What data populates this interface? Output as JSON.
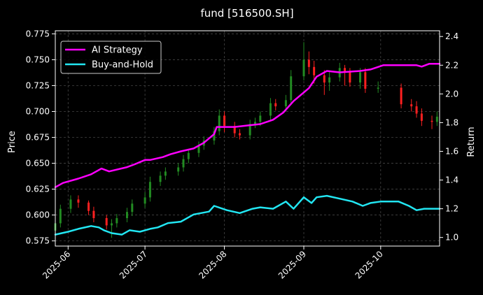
{
  "chart_data": {
    "type": "line",
    "title": "fund [516500.SH]",
    "ylabel": "Price",
    "y2label": "Return",
    "background": "#000000",
    "grid": true,
    "legend_placement": "top-left",
    "ylim": [
      0.57,
      0.778
    ],
    "y2lim": [
      0.94,
      2.44
    ],
    "xlim": [
      "2025-05-27",
      "2025-10-24"
    ],
    "yticks": [
      "0.575",
      "0.600",
      "0.625",
      "0.650",
      "0.675",
      "0.700",
      "0.725",
      "0.750",
      "0.775"
    ],
    "y2ticks": [
      "1.0",
      "1.2",
      "1.4",
      "1.6",
      "1.8",
      "2.0",
      "2.2",
      "2.4"
    ],
    "xticks": [
      "2025-06",
      "2025-07",
      "2025-08",
      "2025-09",
      "2025-10"
    ],
    "series": [
      {
        "name": "AI Strategy",
        "color": "#ff00ff",
        "axis": "right",
        "x": [
          "2025-05-27",
          "2025-05-30",
          "2025-06-05",
          "2025-06-10",
          "2025-06-14",
          "2025-06-17",
          "2025-06-24",
          "2025-06-27",
          "2025-07-01",
          "2025-07-03",
          "2025-07-08",
          "2025-07-11",
          "2025-07-15",
          "2025-07-20",
          "2025-07-24",
          "2025-07-28",
          "2025-07-29",
          "2025-08-05",
          "2025-08-10",
          "2025-08-15",
          "2025-08-20",
          "2025-08-24",
          "2025-08-28",
          "2025-09-03",
          "2025-09-06",
          "2025-09-10",
          "2025-09-15",
          "2025-09-23",
          "2025-09-27",
          "2025-10-02",
          "2025-10-10",
          "2025-10-15",
          "2025-10-17",
          "2025-10-20",
          "2025-10-24"
        ],
        "values": [
          1.35,
          1.38,
          1.41,
          1.44,
          1.48,
          1.46,
          1.49,
          1.51,
          1.54,
          1.54,
          1.56,
          1.58,
          1.6,
          1.62,
          1.66,
          1.72,
          1.77,
          1.77,
          1.78,
          1.79,
          1.82,
          1.87,
          1.95,
          2.04,
          2.12,
          2.16,
          2.15,
          2.16,
          2.17,
          2.2,
          2.2,
          2.2,
          2.19,
          2.21,
          2.21
        ]
      },
      {
        "name": "Buy-and-Hold",
        "color": "#22e6f2",
        "axis": "right",
        "x": [
          "2025-05-27",
          "2025-06-01",
          "2025-06-05",
          "2025-06-10",
          "2025-06-13",
          "2025-06-15",
          "2025-06-18",
          "2025-06-22",
          "2025-06-25",
          "2025-06-29",
          "2025-07-03",
          "2025-07-06",
          "2025-07-10",
          "2025-07-15",
          "2025-07-20",
          "2025-07-26",
          "2025-07-28",
          "2025-08-02",
          "2025-08-07",
          "2025-08-12",
          "2025-08-15",
          "2025-08-20",
          "2025-08-25",
          "2025-08-28",
          "2025-09-01",
          "2025-09-04",
          "2025-09-06",
          "2025-09-10",
          "2025-09-15",
          "2025-09-20",
          "2025-09-24",
          "2025-09-27",
          "2025-10-01",
          "2025-10-05",
          "2025-10-08",
          "2025-10-12",
          "2025-10-15",
          "2025-10-18",
          "2025-10-21",
          "2025-10-24"
        ],
        "values": [
          1.02,
          1.04,
          1.06,
          1.08,
          1.07,
          1.05,
          1.03,
          1.02,
          1.05,
          1.04,
          1.06,
          1.07,
          1.1,
          1.11,
          1.16,
          1.18,
          1.22,
          1.19,
          1.17,
          1.2,
          1.21,
          1.2,
          1.25,
          1.2,
          1.28,
          1.24,
          1.28,
          1.29,
          1.27,
          1.25,
          1.22,
          1.24,
          1.25,
          1.25,
          1.25,
          1.22,
          1.19,
          1.2,
          1.2,
          1.2
        ]
      }
    ],
    "candles": {
      "up_color": "#228b22",
      "down_color": "#ff2020",
      "x": [
        "2025-05-27",
        "2025-05-29",
        "2025-06-02",
        "2025-06-05",
        "2025-06-09",
        "2025-06-11",
        "2025-06-16",
        "2025-06-18",
        "2025-06-20",
        "2025-06-24",
        "2025-06-26",
        "2025-07-01",
        "2025-07-03",
        "2025-07-07",
        "2025-07-09",
        "2025-07-14",
        "2025-07-16",
        "2025-07-18",
        "2025-07-22",
        "2025-07-24",
        "2025-07-28",
        "2025-07-30",
        "2025-08-01",
        "2025-08-05",
        "2025-08-07",
        "2025-08-11",
        "2025-08-13",
        "2025-08-15",
        "2025-08-19",
        "2025-08-21",
        "2025-08-25",
        "2025-08-27",
        "2025-09-01",
        "2025-09-03",
        "2025-09-05",
        "2025-09-09",
        "2025-09-11",
        "2025-09-15",
        "2025-09-17",
        "2025-09-19",
        "2025-09-23",
        "2025-09-25",
        "2025-09-30",
        "2025-10-09",
        "2025-10-13",
        "2025-10-15",
        "2025-10-17",
        "2025-10-21",
        "2025-10-23"
      ],
      "open": [
        0.585,
        0.592,
        0.606,
        0.615,
        0.612,
        0.604,
        0.597,
        0.59,
        0.592,
        0.597,
        0.603,
        0.611,
        0.617,
        0.632,
        0.638,
        0.642,
        0.646,
        0.654,
        0.66,
        0.667,
        0.672,
        0.681,
        0.696,
        0.686,
        0.679,
        0.677,
        0.688,
        0.69,
        0.696,
        0.708,
        0.705,
        0.711,
        0.734,
        0.75,
        0.743,
        0.735,
        0.728,
        0.733,
        0.742,
        0.738,
        0.728,
        0.738,
        0.722,
        0.723,
        0.707,
        0.705,
        0.698,
        0.691,
        0.69
      ],
      "close": [
        0.592,
        0.606,
        0.615,
        0.612,
        0.604,
        0.597,
        0.59,
        0.592,
        0.597,
        0.603,
        0.611,
        0.617,
        0.632,
        0.638,
        0.642,
        0.646,
        0.654,
        0.66,
        0.667,
        0.672,
        0.681,
        0.696,
        0.686,
        0.679,
        0.677,
        0.688,
        0.69,
        0.696,
        0.708,
        0.705,
        0.711,
        0.734,
        0.75,
        0.743,
        0.735,
        0.728,
        0.733,
        0.742,
        0.738,
        0.728,
        0.738,
        0.722,
        0.723,
        0.707,
        0.705,
        0.698,
        0.691,
        0.69,
        0.695
      ],
      "high": [
        0.596,
        0.61,
        0.619,
        0.619,
        0.614,
        0.608,
        0.6,
        0.596,
        0.601,
        0.607,
        0.615,
        0.622,
        0.637,
        0.642,
        0.646,
        0.65,
        0.658,
        0.664,
        0.671,
        0.676,
        0.685,
        0.702,
        0.7,
        0.69,
        0.683,
        0.692,
        0.694,
        0.7,
        0.713,
        0.712,
        0.716,
        0.74,
        0.767,
        0.758,
        0.749,
        0.74,
        0.738,
        0.747,
        0.745,
        0.742,
        0.742,
        0.742,
        0.729,
        0.727,
        0.712,
        0.71,
        0.703,
        0.696,
        0.7
      ],
      "low": [
        0.58,
        0.588,
        0.602,
        0.607,
        0.6,
        0.593,
        0.586,
        0.578,
        0.588,
        0.593,
        0.599,
        0.607,
        0.613,
        0.628,
        0.634,
        0.638,
        0.642,
        0.65,
        0.656,
        0.663,
        0.668,
        0.677,
        0.68,
        0.675,
        0.673,
        0.673,
        0.684,
        0.686,
        0.692,
        0.701,
        0.7,
        0.707,
        0.73,
        0.736,
        0.727,
        0.716,
        0.72,
        0.729,
        0.725,
        0.724,
        0.722,
        0.718,
        0.718,
        0.703,
        0.7,
        0.694,
        0.686,
        0.683,
        0.686
      ]
    }
  }
}
